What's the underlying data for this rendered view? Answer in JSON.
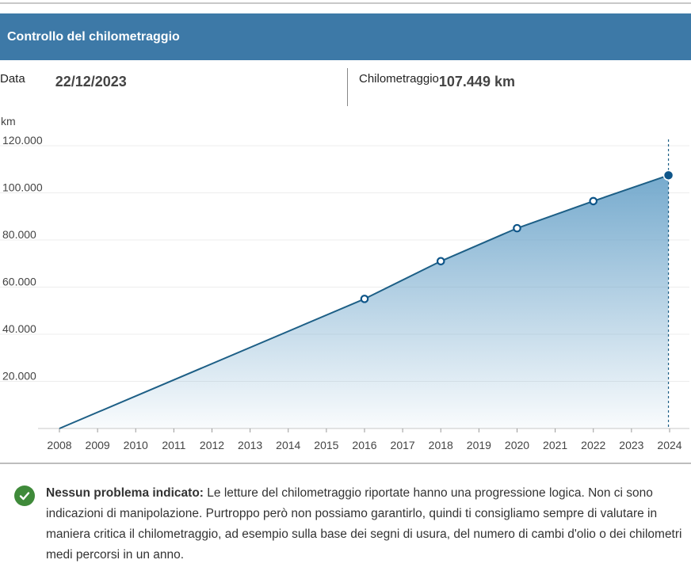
{
  "header": {
    "title": "Controllo del chilometraggio"
  },
  "latest_reading": {
    "date_label": "Data",
    "date_value": "22/12/2023",
    "km_label": "Chilometraggio",
    "km_value": "107.449 km"
  },
  "chart_data": {
    "type": "area",
    "ylabel": "km",
    "xlabel": "",
    "ylim": [
      0,
      120000
    ],
    "xlim": [
      2008,
      2024
    ],
    "y_ticks": [
      {
        "value": 20000,
        "label": "20.000"
      },
      {
        "value": 40000,
        "label": "40.000"
      },
      {
        "value": 60000,
        "label": "60.000"
      },
      {
        "value": 80000,
        "label": "80.000"
      },
      {
        "value": 100000,
        "label": "100.000"
      },
      {
        "value": 120000,
        "label": "120.000"
      }
    ],
    "x_ticks": [
      "2008",
      "2009",
      "2010",
      "2011",
      "2012",
      "2013",
      "2014",
      "2015",
      "2016",
      "2017",
      "2018",
      "2019",
      "2020",
      "2021",
      "2022",
      "2023",
      "2024"
    ],
    "series": [
      {
        "name": "Chilometraggio",
        "color": "#1d5f86",
        "points": [
          {
            "x": 2008.0,
            "y": 0,
            "marker": false
          },
          {
            "x": 2016.0,
            "y": 55000,
            "marker": true
          },
          {
            "x": 2018.0,
            "y": 71000,
            "marker": true
          },
          {
            "x": 2020.0,
            "y": 85000,
            "marker": true
          },
          {
            "x": 2022.0,
            "y": 96500,
            "marker": true
          },
          {
            "x": 2023.97,
            "y": 107449,
            "marker": true,
            "highlight": true
          }
        ]
      }
    ],
    "grid": true,
    "legend": "none"
  },
  "note": {
    "icon": "check-circle-icon",
    "title": "Nessun problema indicato:",
    "text": "Le letture del chilometraggio riportate hanno una progressione logica. Non ci sono indicazioni di manipolazione. Purtroppo però non possiamo garantirlo, quindi ti consigliamo sempre di valutare in maniera critica il chilometraggio, ad esempio sulla base dei segni di usura, del numero di cambi d'olio o dei chilometri medi percorsi in un anno."
  },
  "colors": {
    "header_bg": "#3d79a7",
    "line": "#1d5f86",
    "fill_top": "#6fa6cb",
    "ok_green": "#3f8a3a"
  }
}
